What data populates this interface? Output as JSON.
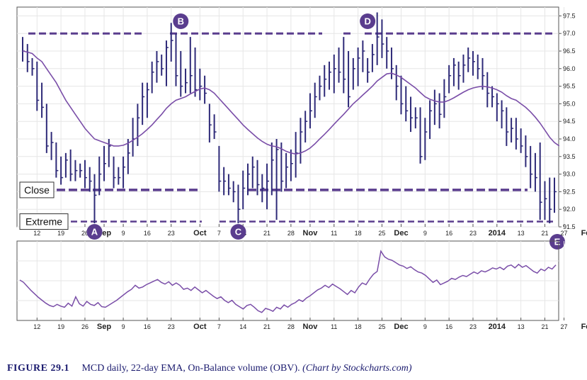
{
  "caption": {
    "figure": "FIGURE 29.1",
    "text": "MCD daily, 22-day EMA, On-Balance volume (OBV).",
    "credit": "(Chart by Stockcharts.com)"
  },
  "colors": {
    "price_bar": "#2e2a78",
    "ema": "#7a4ea8",
    "guide_line": "#5a3d8e",
    "marker_fill": "#5a3d8e",
    "obv": "#7a4ea8"
  },
  "chart_data": [
    {
      "type": "ohlc",
      "ylim": [
        91.5,
        97.75
      ],
      "y_ticks": [
        91.5,
        92.0,
        92.5,
        93.0,
        93.5,
        94.0,
        94.5,
        95.0,
        95.5,
        96.0,
        96.5,
        97.0,
        97.5
      ],
      "y_tick_labels": [
        "91.5",
        "92.0",
        "92.5",
        "93.0",
        "93.5",
        "94.0",
        "94.5",
        "95.0",
        "95.5",
        "96.0",
        "96.5",
        "97.0",
        "97.5"
      ],
      "x_ticks": [
        {
          "label": "12",
          "pos": 3
        },
        {
          "label": "19",
          "pos": 8
        },
        {
          "label": "26",
          "pos": 13
        },
        {
          "label": "Sep",
          "pos": 17,
          "major": true
        },
        {
          "label": "9",
          "pos": 21
        },
        {
          "label": "16",
          "pos": 26
        },
        {
          "label": "23",
          "pos": 31
        },
        {
          "label": "Oct",
          "pos": 37,
          "major": true
        },
        {
          "label": "7",
          "pos": 41
        },
        {
          "label": "14",
          "pos": 46
        },
        {
          "label": "21",
          "pos": 51
        },
        {
          "label": "28",
          "pos": 56
        },
        {
          "label": "Nov",
          "pos": 60,
          "major": true
        },
        {
          "label": "11",
          "pos": 65
        },
        {
          "label": "18",
          "pos": 70
        },
        {
          "label": "25",
          "pos": 75
        },
        {
          "label": "Dec",
          "pos": 79,
          "major": true
        },
        {
          "label": "9",
          "pos": 84
        },
        {
          "label": "16",
          "pos": 89
        },
        {
          "label": "23",
          "pos": 94
        },
        {
          "label": "2014",
          "pos": 99,
          "major": true
        },
        {
          "label": "13",
          "pos": 104
        },
        {
          "label": "21",
          "pos": 109
        },
        {
          "label": "27",
          "pos": 113
        },
        {
          "label": "Feb",
          "pos": 118,
          "major": true
        }
      ],
      "bars": [
        [
          96.9,
          96.2,
          96.5
        ],
        [
          96.7,
          95.9,
          96.2
        ],
        [
          96.3,
          95.8,
          96.0
        ],
        [
          96.2,
          94.8,
          95.1
        ],
        [
          95.6,
          94.6,
          94.9
        ],
        [
          95.0,
          93.6,
          93.8
        ],
        [
          94.2,
          93.4,
          93.9
        ],
        [
          93.9,
          92.9,
          93.1
        ],
        [
          93.5,
          92.7,
          92.9
        ],
        [
          93.6,
          92.9,
          93.4
        ],
        [
          93.7,
          92.8,
          93.0
        ],
        [
          93.4,
          92.8,
          93.1
        ],
        [
          93.3,
          92.9,
          93.1
        ],
        [
          93.4,
          92.6,
          92.9
        ],
        [
          93.2,
          92.5,
          92.8
        ],
        [
          93.0,
          91.6,
          92.4
        ],
        [
          93.5,
          92.4,
          93.0
        ],
        [
          93.8,
          92.8,
          93.3
        ],
        [
          94.0,
          93.2,
          93.8
        ],
        [
          93.5,
          92.6,
          92.9
        ],
        [
          93.2,
          92.7,
          92.9
        ],
        [
          93.5,
          92.6,
          93.2
        ],
        [
          94.0,
          93.0,
          93.6
        ],
        [
          94.6,
          93.5,
          94.0
        ],
        [
          95.0,
          93.8,
          94.6
        ],
        [
          95.6,
          94.4,
          95.2
        ],
        [
          95.6,
          94.6,
          95.4
        ],
        [
          96.2,
          95.3,
          95.9
        ],
        [
          96.5,
          95.6,
          96.2
        ],
        [
          96.4,
          95.8,
          96.0
        ],
        [
          96.8,
          95.5,
          96.6
        ],
        [
          97.3,
          96.2,
          96.8
        ],
        [
          97.0,
          95.5,
          95.8
        ],
        [
          96.5,
          95.2,
          95.5
        ],
        [
          96.0,
          95.3,
          95.6
        ],
        [
          96.9,
          95.3,
          95.8
        ],
        [
          96.6,
          95.2,
          95.4
        ],
        [
          96.0,
          95.1,
          95.5
        ],
        [
          95.8,
          95.0,
          95.3
        ],
        [
          95.0,
          93.9,
          94.4
        ],
        [
          94.7,
          94.0,
          94.2
        ],
        [
          93.8,
          92.5,
          92.8
        ],
        [
          93.2,
          92.4,
          92.8
        ],
        [
          93.0,
          92.4,
          92.6
        ],
        [
          92.8,
          92.2,
          92.5
        ],
        [
          92.7,
          91.6,
          92.0
        ],
        [
          93.1,
          92.0,
          92.6
        ],
        [
          93.3,
          92.4,
          93.0
        ],
        [
          93.5,
          92.6,
          93.2
        ],
        [
          93.4,
          92.4,
          92.7
        ],
        [
          93.0,
          92.2,
          92.6
        ],
        [
          93.3,
          92.0,
          92.8
        ],
        [
          93.9,
          92.4,
          93.4
        ],
        [
          94.0,
          91.7,
          93.7
        ],
        [
          93.9,
          92.5,
          92.8
        ],
        [
          93.6,
          92.6,
          93.2
        ],
        [
          93.7,
          92.8,
          93.3
        ],
        [
          94.2,
          92.9,
          93.6
        ],
        [
          94.6,
          93.3,
          94.2
        ],
        [
          94.8,
          93.9,
          94.5
        ],
        [
          95.3,
          94.3,
          94.8
        ],
        [
          95.6,
          94.6,
          95.2
        ],
        [
          95.8,
          95.1,
          95.5
        ],
        [
          96.1,
          95.2,
          95.7
        ],
        [
          96.2,
          95.4,
          95.9
        ],
        [
          96.4,
          95.3,
          96.0
        ],
        [
          96.6,
          95.6,
          95.9
        ],
        [
          96.9,
          95.3,
          95.7
        ],
        [
          96.5,
          94.9,
          95.2
        ],
        [
          96.3,
          95.4,
          96.0
        ],
        [
          96.6,
          95.5,
          96.3
        ],
        [
          96.8,
          95.9,
          96.5
        ],
        [
          96.3,
          95.6,
          95.9
        ],
        [
          96.7,
          95.9,
          96.4
        ],
        [
          97.6,
          96.1,
          96.9
        ],
        [
          97.4,
          96.3,
          96.7
        ],
        [
          96.9,
          96.0,
          96.5
        ],
        [
          96.6,
          95.7,
          96.0
        ],
        [
          96.1,
          95.1,
          95.5
        ],
        [
          95.8,
          94.7,
          95.0
        ],
        [
          95.5,
          94.5,
          94.8
        ],
        [
          95.2,
          94.2,
          94.6
        ],
        [
          94.9,
          94.3,
          94.6
        ],
        [
          94.9,
          93.3,
          93.5
        ],
        [
          94.6,
          93.4,
          94.2
        ],
        [
          95.1,
          94.0,
          94.8
        ],
        [
          95.4,
          94.4,
          95.0
        ],
        [
          95.3,
          94.3,
          94.7
        ],
        [
          95.7,
          94.6,
          95.2
        ],
        [
          96.1,
          95.3,
          95.8
        ],
        [
          96.3,
          95.5,
          96.1
        ],
        [
          96.2,
          95.4,
          95.8
        ],
        [
          96.4,
          95.6,
          96.1
        ],
        [
          96.6,
          95.9,
          96.3
        ],
        [
          96.5,
          95.8,
          96.2
        ],
        [
          96.4,
          95.7,
          96.0
        ],
        [
          96.3,
          95.4,
          95.8
        ],
        [
          95.9,
          94.9,
          95.3
        ],
        [
          95.5,
          94.9,
          95.2
        ],
        [
          95.3,
          94.5,
          95.0
        ],
        [
          95.1,
          94.3,
          94.8
        ],
        [
          94.9,
          93.8,
          94.2
        ],
        [
          94.6,
          93.9,
          94.3
        ],
        [
          94.6,
          93.7,
          94.0
        ],
        [
          94.3,
          93.6,
          93.8
        ],
        [
          94.1,
          93.2,
          93.5
        ],
        [
          93.8,
          92.6,
          93.0
        ],
        [
          93.6,
          92.5,
          92.9
        ],
        [
          93.9,
          91.7,
          92.2
        ],
        [
          92.8,
          91.7,
          92.3
        ],
        [
          92.9,
          91.6,
          92.0
        ],
        [
          92.9,
          91.9,
          92.5
        ]
      ],
      "ema": [
        96.5,
        96.47,
        96.43,
        96.3,
        96.2,
        96.0,
        95.8,
        95.6,
        95.35,
        95.1,
        94.9,
        94.7,
        94.5,
        94.3,
        94.15,
        94.0,
        93.95,
        93.9,
        93.85,
        93.8,
        93.8,
        93.82,
        93.88,
        93.96,
        94.05,
        94.15,
        94.27,
        94.4,
        94.55,
        94.7,
        94.87,
        95.0,
        95.1,
        95.15,
        95.2,
        95.28,
        95.35,
        95.42,
        95.45,
        95.4,
        95.3,
        95.15,
        95.0,
        94.85,
        94.7,
        94.55,
        94.4,
        94.27,
        94.15,
        94.03,
        93.93,
        93.85,
        93.8,
        93.78,
        93.72,
        93.65,
        93.6,
        93.57,
        93.6,
        93.66,
        93.74,
        93.86,
        94.0,
        94.13,
        94.27,
        94.42,
        94.56,
        94.7,
        94.85,
        95.0,
        95.12,
        95.25,
        95.37,
        95.5,
        95.65,
        95.75,
        95.85,
        95.87,
        95.82,
        95.75,
        95.65,
        95.55,
        95.45,
        95.32,
        95.2,
        95.13,
        95.08,
        95.05,
        95.05,
        95.1,
        95.17,
        95.25,
        95.33,
        95.4,
        95.45,
        95.48,
        95.5,
        95.48,
        95.45,
        95.4,
        95.33,
        95.23,
        95.15,
        95.1,
        95.0,
        94.9,
        94.77,
        94.62,
        94.45,
        94.25,
        94.05,
        93.9,
        93.8
      ],
      "annotations": {
        "top_line": 97.0,
        "close_line": 92.55,
        "extreme_line": 91.65,
        "close_label": "Close",
        "extreme_label": "Extreme",
        "markers": [
          {
            "letter": "A",
            "pos": 15,
            "value": 91.3,
            "anchor": "below"
          },
          {
            "letter": "B",
            "pos": 33,
            "value": 97.9,
            "anchor": "top"
          },
          {
            "letter": "C",
            "pos": 45,
            "value": 91.3,
            "anchor": "below"
          },
          {
            "letter": "D",
            "pos": 72,
            "value": 97.9,
            "anchor": "top"
          },
          {
            "letter": "E",
            "pos": 122,
            "value": 91.3,
            "anchor": "below"
          }
        ]
      }
    },
    {
      "type": "line",
      "series": [
        {
          "values": [
            60,
            56,
            49,
            42,
            36,
            30,
            25,
            20,
            16,
            14,
            18,
            15,
            13,
            20,
            15,
            31,
            19,
            15,
            23,
            18,
            16,
            21,
            14,
            13,
            17,
            21,
            25,
            30,
            35,
            40,
            44,
            51,
            46,
            48,
            52,
            55,
            58,
            61,
            56,
            53,
            57,
            51,
            55,
            51,
            44,
            46,
            42,
            48,
            43,
            38,
            42,
            37,
            32,
            28,
            31,
            25,
            21,
            25,
            18,
            14,
            10,
            16,
            18,
            13,
            7,
            4,
            11,
            9,
            6,
            13,
            10,
            17,
            13,
            18,
            21,
            26,
            23,
            29,
            33,
            38,
            43,
            46,
            51,
            47,
            53,
            49,
            45,
            40,
            35,
            42,
            38,
            48,
            55,
            52,
            62,
            70,
            75,
            110,
            100,
            96,
            94,
            90,
            86,
            84,
            80,
            83,
            78,
            74,
            72,
            68,
            62,
            56,
            60,
            52,
            55,
            58,
            63,
            61,
            65,
            68,
            66,
            70,
            74,
            71,
            76,
            74,
            77,
            81,
            79,
            82,
            78,
            84,
            86,
            81,
            87,
            82,
            85,
            80,
            75,
            72,
            79,
            76,
            82,
            79,
            86
          ]
        }
      ],
      "ylim": [
        0,
        120
      ]
    }
  ]
}
